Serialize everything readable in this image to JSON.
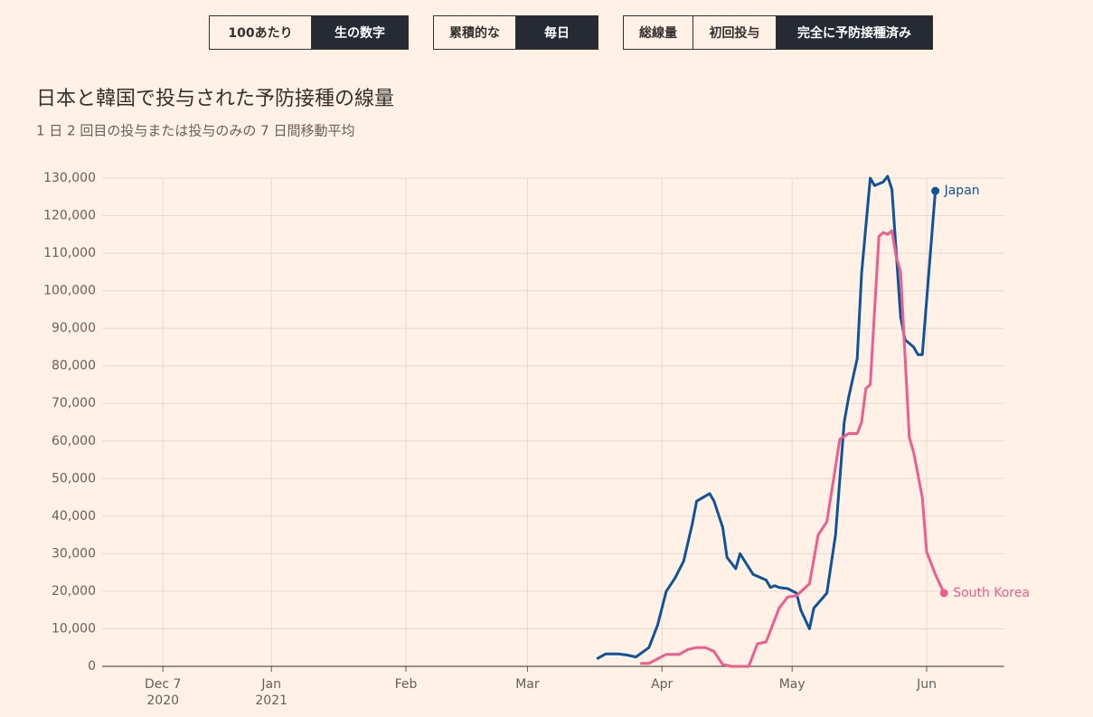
{
  "controls": [
    {
      "options": [
        "100あたり",
        "生の数字"
      ],
      "selected": 1
    },
    {
      "options": [
        "累積的な",
        "毎日"
      ],
      "selected": 1
    },
    {
      "options": [
        "総線量",
        "初回投与",
        "完全に予防接種済み"
      ],
      "selected": 2
    }
  ],
  "chart_data": {
    "type": "line",
    "title": "日本と韓国で投与された予防接種の線量",
    "subtitle": "1 日 2 回目の投与または投与のみの 7 日間移動平均",
    "xlim": [
      "2020-11-23",
      "2021-06-18"
    ],
    "xticks": [
      {
        "value": "2020-12-07",
        "label": [
          "Dec 7",
          "2020"
        ]
      },
      {
        "value": "2021-01-01",
        "label": [
          "Jan",
          "2021"
        ]
      },
      {
        "value": "2021-02-01",
        "label": [
          "Feb"
        ]
      },
      {
        "value": "2021-03-01",
        "label": [
          "Mar"
        ]
      },
      {
        "value": "2021-04-01",
        "label": [
          "Apr"
        ]
      },
      {
        "value": "2021-05-01",
        "label": [
          "May"
        ]
      },
      {
        "value": "2021-06-01",
        "label": [
          "Jun"
        ]
      }
    ],
    "ylim": [
      0,
      130000
    ],
    "yticks": [
      0,
      {
        "value": 10000,
        "label": "10,000"
      },
      {
        "value": 20000,
        "label": "20,000"
      },
      {
        "value": 30000,
        "label": "30,000"
      },
      {
        "value": 40000,
        "label": "40,000"
      },
      {
        "value": 50000,
        "label": "50,000"
      },
      {
        "value": 60000,
        "label": "60,000"
      },
      {
        "value": 70000,
        "label": "70,000"
      },
      {
        "value": 80000,
        "label": "80,000"
      },
      {
        "value": 90000,
        "label": "90,000"
      },
      {
        "value": 100000,
        "label": "100,000"
      },
      {
        "value": 110000,
        "label": "110,000"
      },
      {
        "value": 120000,
        "label": "120,000"
      },
      {
        "value": 130000,
        "label": "130,000"
      }
    ],
    "grid": true,
    "series": [
      {
        "name": "Japan",
        "color": "#0f5499",
        "x": [
          "2021-03-17",
          "2021-03-19",
          "2021-03-22",
          "2021-03-24",
          "2021-03-26",
          "2021-03-29",
          "2021-03-31",
          "2021-04-02",
          "2021-04-04",
          "2021-04-06",
          "2021-04-08",
          "2021-04-09",
          "2021-04-12",
          "2021-04-13",
          "2021-04-15",
          "2021-04-16",
          "2021-04-18",
          "2021-04-19",
          "2021-04-22",
          "2021-04-25",
          "2021-04-26",
          "2021-04-27",
          "2021-04-28",
          "2021-04-30",
          "2021-05-02",
          "2021-05-03",
          "2021-05-05",
          "2021-05-06",
          "2021-05-09",
          "2021-05-11",
          "2021-05-13",
          "2021-05-14",
          "2021-05-16",
          "2021-05-17",
          "2021-05-19",
          "2021-05-20",
          "2021-05-22",
          "2021-05-23",
          "2021-05-24",
          "2021-05-26",
          "2021-05-27",
          "2021-05-29",
          "2021-05-30",
          "2021-05-31",
          "2021-06-03"
        ],
        "values": [
          2000,
          3300,
          3300,
          3000,
          2500,
          5000,
          11000,
          20000,
          23500,
          28000,
          38000,
          44000,
          46000,
          44000,
          37000,
          29000,
          26000,
          30000,
          24500,
          23000,
          21000,
          21500,
          21000,
          20700,
          19500,
          15000,
          10000,
          15500,
          19500,
          35000,
          65000,
          71500,
          82000,
          104500,
          130000,
          128000,
          129000,
          130500,
          127000,
          93000,
          87000,
          85000,
          83000,
          83000,
          126600
        ]
      },
      {
        "name": "South Korea",
        "color": "#eb5e8d",
        "x": [
          "2021-03-27",
          "2021-03-29",
          "2021-03-31",
          "2021-04-02",
          "2021-04-05",
          "2021-04-07",
          "2021-04-09",
          "2021-04-11",
          "2021-04-13",
          "2021-04-15",
          "2021-04-17",
          "2021-04-21",
          "2021-04-23",
          "2021-04-25",
          "2021-04-28",
          "2021-04-30",
          "2021-05-02",
          "2021-05-05",
          "2021-05-07",
          "2021-05-09",
          "2021-05-12",
          "2021-05-14",
          "2021-05-16",
          "2021-05-17",
          "2021-05-18",
          "2021-05-19",
          "2021-05-21",
          "2021-05-22",
          "2021-05-23",
          "2021-05-24",
          "2021-05-25",
          "2021-05-26",
          "2021-05-28",
          "2021-05-29",
          "2021-05-31",
          "2021-06-01",
          "2021-06-03",
          "2021-06-05"
        ],
        "values": [
          800,
          800,
          2000,
          3200,
          3200,
          4500,
          5000,
          5000,
          4000,
          500,
          0,
          0,
          6000,
          6500,
          15500,
          18500,
          18800,
          22000,
          35000,
          38500,
          60500,
          62000,
          62000,
          65000,
          74000,
          75000,
          114500,
          115500,
          115000,
          116000,
          109000,
          105000,
          61000,
          57000,
          45000,
          30500,
          24500,
          19500
        ]
      }
    ]
  }
}
